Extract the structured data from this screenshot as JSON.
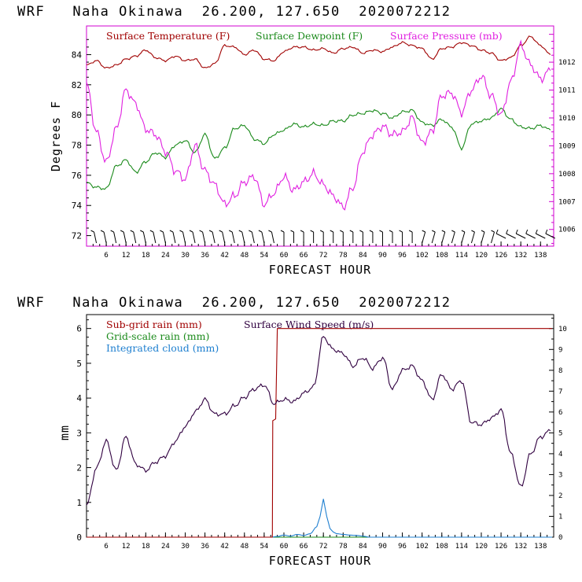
{
  "chart_data": [
    {
      "type": "line",
      "title": "WRF   Naha Okinawa  26.200, 127.650  2020072212",
      "xlabel": "FORECAST HOUR",
      "ylabel": "Degrees F",
      "xlim": [
        0,
        142
      ],
      "ylim": [
        71.3,
        85.9
      ],
      "xticks": [
        6,
        12,
        18,
        24,
        30,
        36,
        42,
        48,
        54,
        60,
        66,
        72,
        78,
        84,
        90,
        96,
        102,
        108,
        114,
        120,
        126,
        132,
        138
      ],
      "yticks": [
        72,
        74,
        76,
        78,
        80,
        82,
        84
      ],
      "y2label": "Surface Pressure (mb)",
      "y2lim": [
        1005.4,
        1013.3
      ],
      "y2ticks": [
        1006,
        1007,
        1008,
        1009,
        1010,
        1011,
        1012
      ],
      "legend": [
        "Surface Temperature (F)",
        "Surface Dewpoint (F)",
        "Surface Pressure (mb)"
      ],
      "colors": {
        "temperature": "#a00000",
        "dewpoint": "#1a8a1a",
        "pressure": "#e020e0",
        "wind_barbs": "#000000"
      },
      "x": [
        0,
        3,
        6,
        9,
        12,
        15,
        18,
        21,
        24,
        27,
        30,
        33,
        36,
        39,
        42,
        45,
        48,
        51,
        54,
        57,
        60,
        63,
        66,
        69,
        72,
        75,
        78,
        81,
        84,
        87,
        90,
        93,
        96,
        99,
        102,
        105,
        108,
        111,
        114,
        117,
        120,
        123,
        126,
        129,
        132,
        135,
        138,
        141
      ],
      "series": [
        {
          "name": "Surface Temperature (F)",
          "axis": "left",
          "values": [
            83.3,
            83.6,
            83.1,
            83.3,
            83.7,
            83.9,
            84.3,
            83.8,
            83.6,
            83.9,
            83.6,
            83.7,
            83.1,
            83.4,
            84.6,
            84.5,
            84.0,
            84.3,
            83.7,
            83.6,
            84.2,
            84.5,
            84.5,
            84.3,
            84.4,
            84.1,
            84.4,
            84.5,
            84.1,
            84.3,
            84.2,
            84.5,
            84.8,
            84.6,
            84.4,
            83.7,
            84.4,
            84.5,
            84.8,
            84.6,
            84.3,
            84.1,
            83.6,
            83.8,
            84.6,
            85.2,
            84.6,
            84.0
          ]
        },
        {
          "name": "Surface Dewpoint (F)",
          "axis": "left",
          "values": [
            75.5,
            75.2,
            75.1,
            76.6,
            77.0,
            76.2,
            76.9,
            77.5,
            77.2,
            78.0,
            78.3,
            77.5,
            78.7,
            77.1,
            77.8,
            79.1,
            79.3,
            78.4,
            78.1,
            78.7,
            79.0,
            79.4,
            79.2,
            79.4,
            79.3,
            79.6,
            79.6,
            80.0,
            80.1,
            80.3,
            80.1,
            79.8,
            80.2,
            80.3,
            79.5,
            79.3,
            79.7,
            79.2,
            77.8,
            79.4,
            79.6,
            79.8,
            80.4,
            79.7,
            79.2,
            79.1,
            79.3,
            79.0
          ]
        },
        {
          "name": "Surface Pressure (mb)",
          "axis": "right",
          "values": [
            1011.2,
            1009.5,
            1008.4,
            1009.6,
            1011.0,
            1010.5,
            1009.6,
            1009.4,
            1008.8,
            1008.1,
            1007.8,
            1009.0,
            1008.1,
            1007.6,
            1006.9,
            1007.2,
            1007.7,
            1007.9,
            1006.9,
            1007.3,
            1007.9,
            1007.4,
            1007.7,
            1008.0,
            1007.6,
            1007.2,
            1006.8,
            1007.5,
            1008.8,
            1009.4,
            1009.7,
            1009.4,
            1009.5,
            1010.0,
            1009.1,
            1009.5,
            1010.8,
            1010.9,
            1010.2,
            1011.0,
            1011.5,
            1010.8,
            1010.1,
            1011.3,
            1012.6,
            1011.9,
            1011.4,
            1011.7
          ]
        }
      ],
      "wind_barbs": {
        "x": [
          3,
          6,
          9,
          12,
          15,
          18,
          21,
          24,
          27,
          30,
          33,
          36,
          39,
          42,
          45,
          48,
          51,
          54,
          57,
          60,
          63,
          66,
          69,
          72,
          75,
          78,
          81,
          84,
          87,
          90,
          93,
          96,
          99,
          102,
          105,
          108,
          111,
          114,
          117,
          120,
          123,
          126,
          129,
          132,
          135,
          138,
          141
        ]
      }
    },
    {
      "type": "line",
      "title": "WRF   Naha Okinawa  26.200, 127.650  2020072212",
      "xlabel": "FORECAST HOUR",
      "ylabel": "mm",
      "xlim": [
        0,
        142
      ],
      "ylim": [
        0,
        6.4
      ],
      "xticks": [
        6,
        12,
        18,
        24,
        30,
        36,
        42,
        48,
        54,
        60,
        66,
        72,
        78,
        84,
        90,
        96,
        102,
        108,
        114,
        120,
        126,
        132,
        138
      ],
      "yticks": [
        0,
        1,
        2,
        3,
        4,
        5,
        6
      ],
      "y2label": "Surface Wind Speed (m/s)",
      "y2lim": [
        0,
        10.67
      ],
      "y2ticks": [
        0,
        1,
        2,
        3,
        4,
        5,
        6,
        7,
        8,
        9,
        10
      ],
      "legend": [
        "Sub-grid rain (mm)",
        "Grid-scale rain (mm)",
        "Integrated cloud (mm)",
        "Surface Wind Speed (m/s)"
      ],
      "colors": {
        "subgrid_rain": "#a00000",
        "gridscale_rain": "#1a8a1a",
        "integrated_cloud": "#2080d0",
        "wind_speed": "#300040"
      },
      "x": [
        0,
        3,
        6,
        9,
        12,
        15,
        18,
        21,
        24,
        27,
        30,
        33,
        36,
        39,
        42,
        45,
        48,
        51,
        54,
        57,
        60,
        63,
        66,
        69,
        72,
        75,
        78,
        81,
        84,
        87,
        90,
        93,
        96,
        99,
        102,
        105,
        108,
        111,
        114,
        117,
        120,
        123,
        126,
        129,
        132,
        135,
        138,
        141
      ],
      "series": [
        {
          "name": "Surface Wind Speed (m/s)",
          "axis": "right",
          "values": [
            1.5,
            3.3,
            4.6,
            3.2,
            4.8,
            3.5,
            3.2,
            3.6,
            3.9,
            4.6,
            5.3,
            6.0,
            6.6,
            5.9,
            5.9,
            6.3,
            6.7,
            7.1,
            7.3,
            6.4,
            6.6,
            6.5,
            6.9,
            7.2,
            9.6,
            9.0,
            8.8,
            8.2,
            8.6,
            8.1,
            8.6,
            7.1,
            8.0,
            8.2,
            7.5,
            6.6,
            7.8,
            7.1,
            7.5,
            5.5,
            5.4,
            5.7,
            6.1,
            4.0,
            2.4,
            4.0,
            4.8,
            5.1
          ]
        },
        {
          "name": "Sub-grid rain (mm)",
          "axis": "left",
          "x": [
            0,
            56.5,
            56.6,
            57.5,
            58.0,
            141.5
          ],
          "values": [
            0,
            0,
            3.35,
            3.4,
            6.0,
            6.0
          ]
        },
        {
          "name": "Grid-scale rain (mm)",
          "axis": "left",
          "x": [
            0,
            141.5
          ],
          "values": [
            0,
            0
          ]
        },
        {
          "name": "Integrated cloud (mm)",
          "axis": "left",
          "x": [
            0,
            56,
            58,
            60,
            62,
            64,
            66,
            68,
            70,
            71,
            72,
            73,
            74,
            75,
            76,
            78,
            80,
            82,
            84,
            86,
            141.5
          ],
          "values": [
            0,
            0,
            0.02,
            0.06,
            0.03,
            0.08,
            0.05,
            0.1,
            0.3,
            0.6,
            1.1,
            0.6,
            0.25,
            0.15,
            0.1,
            0.08,
            0.06,
            0.05,
            0.03,
            0,
            0
          ]
        }
      ]
    }
  ]
}
